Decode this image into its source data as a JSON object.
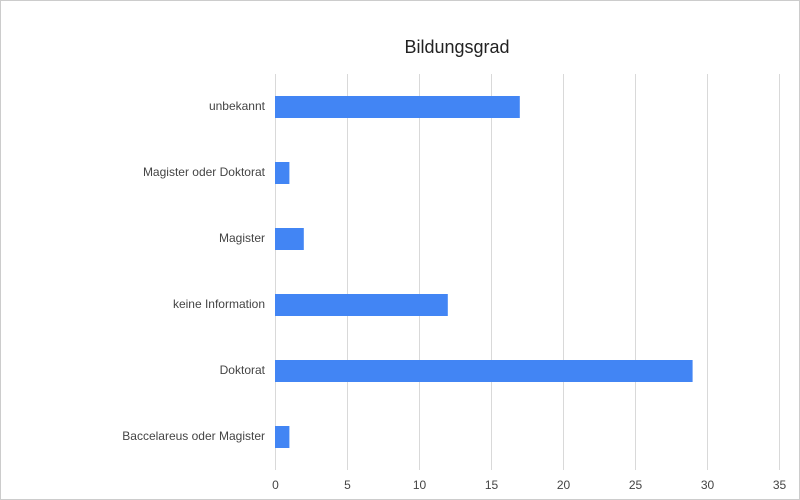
{
  "chart_data": {
    "type": "hbar",
    "title": "Bildungsgrad",
    "categories": [
      "unbekannt",
      "Magister oder Doktorat",
      "Magister",
      "keine Information",
      "Doktorat",
      "Baccelareus oder Magister"
    ],
    "values": [
      17,
      1,
      2,
      12,
      29,
      1
    ],
    "color": "#4285f4",
    "xlim": [
      0,
      35
    ],
    "xticks": [
      0,
      5,
      10,
      15,
      20,
      25,
      30,
      35
    ],
    "grid": true
  }
}
